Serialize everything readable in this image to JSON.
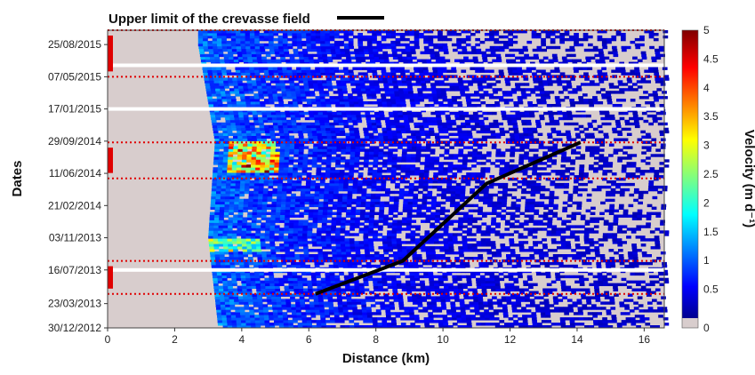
{
  "chart_data": {
    "type": "heatmap",
    "title": "",
    "xlabel": "Distance (km)",
    "ylabel": "Dates",
    "xlim": [
      0,
      16.6
    ],
    "ylim": [
      "30/12/2012",
      "13/10/2015"
    ],
    "x_ticks": [
      0,
      2,
      4,
      6,
      8,
      10,
      12,
      14,
      16
    ],
    "y_ticks": [
      "30/12/2012",
      "23/03/2013",
      "16/07/2013",
      "03/11/2013",
      "21/02/2014",
      "11/06/2014",
      "29/09/2014",
      "17/01/2015",
      "07/05/2015",
      "25/08/2015"
    ],
    "colorbar": {
      "label": "Velocity (m d⁻¹)",
      "range": [
        0,
        5
      ],
      "ticks": [
        0,
        0.5,
        1,
        1.5,
        2,
        2.5,
        3,
        3.5,
        4,
        4.5,
        5
      ],
      "colormap": "jet",
      "zero_color": "#d8cdcd"
    },
    "legend": {
      "entries": [
        {
          "label": "Upper limit of the crevasse field",
          "color": "#000000"
        }
      ],
      "placement": "top"
    },
    "series": [
      {
        "name": "Upper limit of the crevasse field",
        "type": "line",
        "color": "#000000",
        "points": [
          {
            "x": 6.2,
            "date": "25/04/2013"
          },
          {
            "x": 8.8,
            "date": "16/08/2013"
          },
          {
            "x": 11.3,
            "date": "07/05/2014"
          },
          {
            "x": 14.1,
            "date": "25/09/2014"
          }
        ]
      }
    ],
    "highlighted_periods": [
      {
        "start": "25/04/2013",
        "end": "16/08/2013",
        "color": "#e00000"
      },
      {
        "start": "25/05/2014",
        "end": "25/09/2014",
        "color": "#e00000"
      },
      {
        "start": "07/05/2015",
        "end": "13/10/2015",
        "color": "#e00000"
      }
    ],
    "data_gaps": [
      "16/07/2013",
      "17/01/2015",
      "15/06/2015"
    ],
    "glacier_front_km": [
      {
        "date": "30/12/2012",
        "x": 3.3
      },
      {
        "date": "03/11/2013",
        "x": 3.0
      },
      {
        "date": "29/09/2014",
        "x": 3.2
      },
      {
        "date": "25/08/2015",
        "x": 2.7
      }
    ],
    "velocity_features": [
      {
        "description": "Peak velocities",
        "date_range": [
          "11/06/2014",
          "29/09/2014"
        ],
        "x_range": [
          3.5,
          5.0
        ],
        "max_value": 4.6
      },
      {
        "description": "Secondary maximum",
        "date_range": [
          "15/09/2013",
          "03/11/2013"
        ],
        "x_range": [
          3.0,
          4.5
        ],
        "max_value": 3.2
      }
    ]
  }
}
